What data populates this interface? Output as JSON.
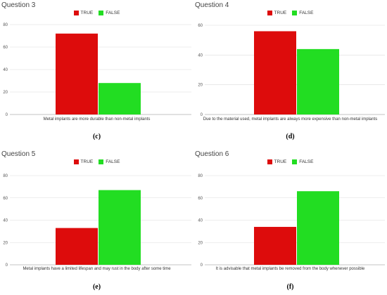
{
  "colors": {
    "true": "#dd0c0c",
    "false": "#22dd22",
    "grid": "#dcdcdc",
    "axis": "#888888"
  },
  "legend": {
    "true_label": "TRUE",
    "false_label": "FALSE"
  },
  "chart_data": [
    {
      "type": "bar",
      "title": "Question 3",
      "xlabel": "Metal implants are more durable than non-metal implants",
      "sublabel": "(c)",
      "categories": [
        "TRUE",
        "FALSE"
      ],
      "values": [
        72,
        28
      ],
      "ylim": [
        0,
        80
      ],
      "yticks": [
        0,
        20,
        40,
        60,
        80
      ],
      "grid": true,
      "legend_position": "top"
    },
    {
      "type": "bar",
      "title": "Question 4",
      "xlabel": "Due to the material used, metal implants are always more expensive than non-metal implants",
      "sublabel": "(d)",
      "categories": [
        "TRUE",
        "FALSE"
      ],
      "values": [
        56,
        44
      ],
      "ylim": [
        0,
        60
      ],
      "yticks": [
        0,
        20,
        40,
        60
      ],
      "grid": true,
      "legend_position": "top"
    },
    {
      "type": "bar",
      "title": "Question 5",
      "xlabel": "Metal implants have a limited lifespan and may rust in the body after some time",
      "sublabel": "(e)",
      "categories": [
        "TRUE",
        "FALSE"
      ],
      "values": [
        33,
        67
      ],
      "ylim": [
        0,
        80
      ],
      "yticks": [
        0,
        20,
        40,
        60,
        80
      ],
      "grid": true,
      "legend_position": "top"
    },
    {
      "type": "bar",
      "title": "Question 6",
      "xlabel": "It is advisable that metal implants be removed from the body whenever possible",
      "sublabel": "(f)",
      "categories": [
        "TRUE",
        "FALSE"
      ],
      "values": [
        34,
        66
      ],
      "ylim": [
        0,
        80
      ],
      "yticks": [
        0,
        20,
        40,
        60,
        80
      ],
      "grid": true,
      "legend_position": "top"
    }
  ]
}
